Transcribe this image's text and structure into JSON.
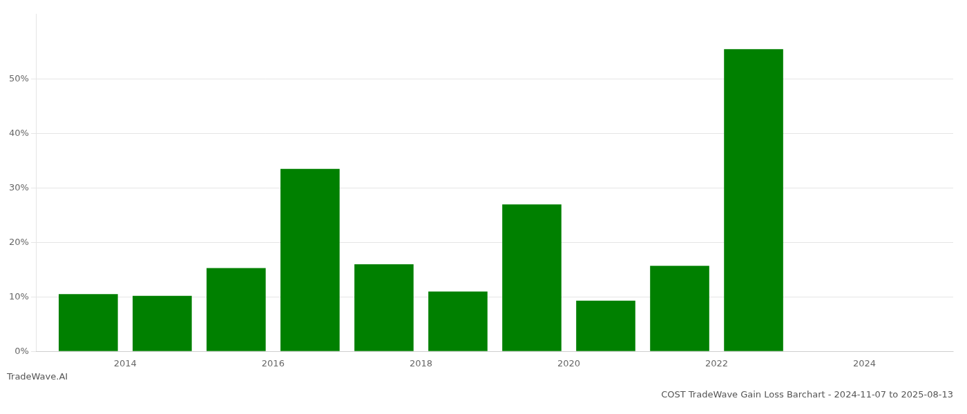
{
  "chart_data": {
    "type": "bar",
    "title": "COST TradeWave Gain Loss Barchart - 2024-11-07 to 2025-08-13",
    "annotations": [
      "TradeWave.AI"
    ],
    "x": [
      2013.5,
      2014.5,
      2015.5,
      2016.5,
      2017.5,
      2018.5,
      2019.5,
      2020.5,
      2021.5,
      2022.5
    ],
    "values": [
      0.105,
      0.102,
      0.153,
      0.335,
      0.16,
      0.11,
      0.27,
      0.093,
      0.157,
      0.555
    ],
    "color": "#008000",
    "xlim": [
      2012.8,
      2025.2
    ],
    "xticks": [
      2014,
      2016,
      2018,
      2020,
      2022,
      2024
    ],
    "ylim": [
      0,
      0.62
    ],
    "yticks": [
      {
        "value": 0.0,
        "label": "0%"
      },
      {
        "value": 0.1,
        "label": "10%"
      },
      {
        "value": 0.2,
        "label": "20%"
      },
      {
        "value": 0.3,
        "label": "30%"
      },
      {
        "value": 0.4,
        "label": "40%"
      },
      {
        "value": 0.5,
        "label": "50%"
      }
    ],
    "grid": true
  }
}
